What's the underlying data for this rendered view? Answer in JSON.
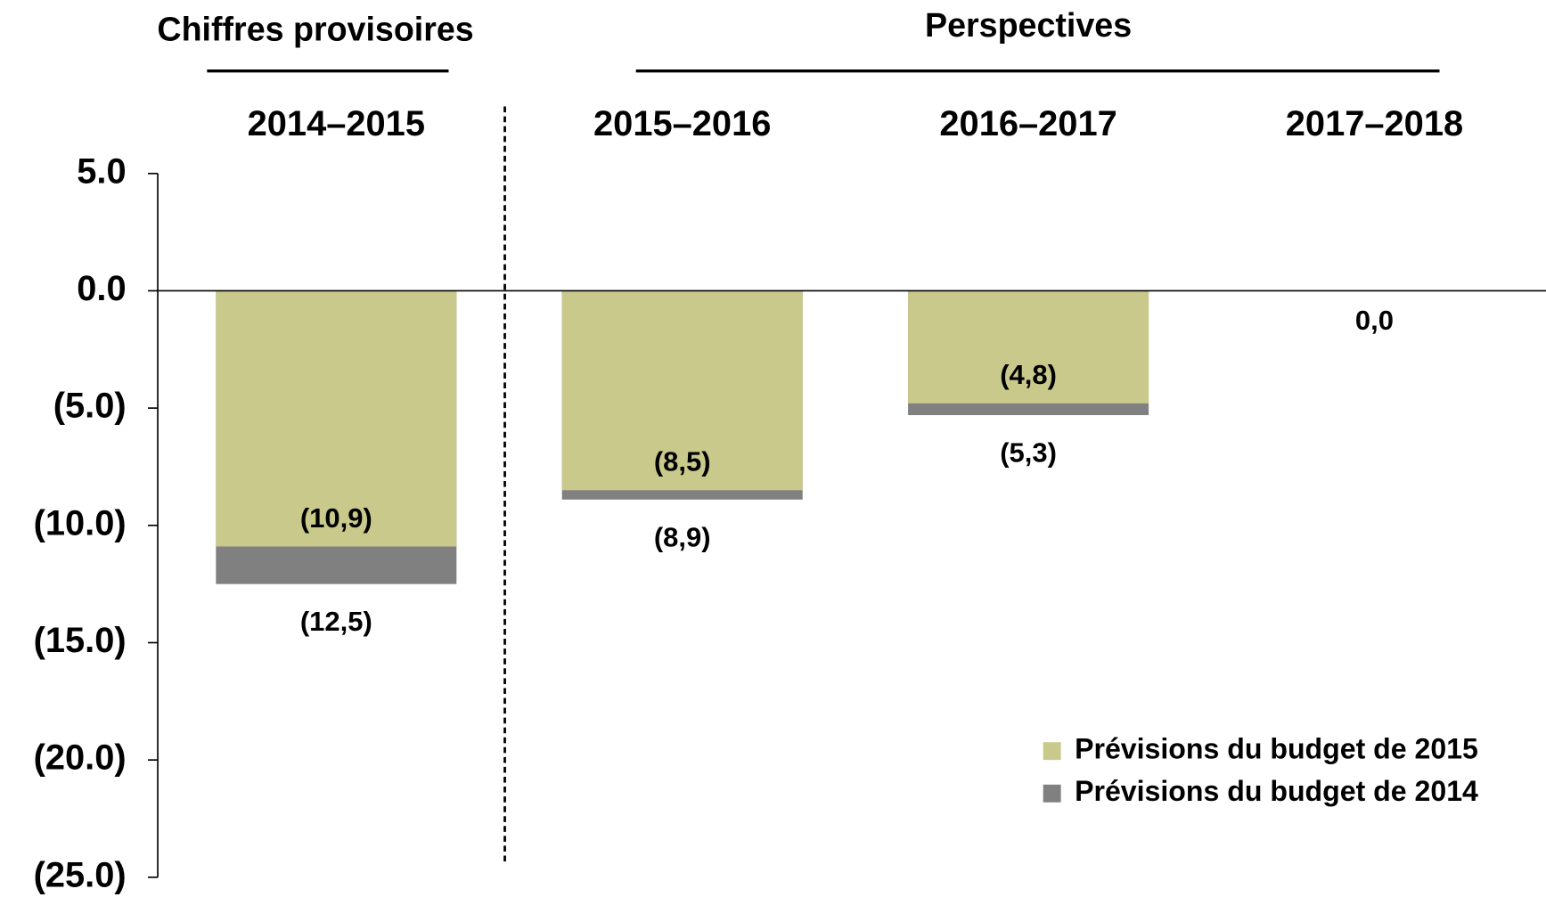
{
  "chart_data": {
    "type": "bar",
    "headers": [
      "Chiffres provisoires",
      "Perspectives"
    ],
    "categories": [
      "2014–2015",
      "2015–2016",
      "2016–2017",
      "2017–2018"
    ],
    "series": [
      {
        "name": "Prévisions du budget de 2014",
        "color": "#808080",
        "values": [
          -12.5,
          -8.9,
          -5.3,
          null
        ],
        "value_labels": [
          "(12,5)",
          "(8,9)",
          "(5,3)",
          null
        ]
      },
      {
        "name": "Prévisions du budget de 2015",
        "color": "#c9c98b",
        "values": [
          -10.9,
          -8.5,
          -4.8,
          0.0
        ],
        "value_labels": [
          "(10,9)",
          "(8,5)",
          "(4,8)",
          "0,0"
        ]
      }
    ],
    "ylim": [
      -25,
      5
    ],
    "yticks": [
      {
        "value": 5,
        "label": "5.0"
      },
      {
        "value": 0,
        "label": "0.0"
      },
      {
        "value": -5,
        "label": "(5.0)"
      },
      {
        "value": -10,
        "label": "(10.0)"
      },
      {
        "value": -15,
        "label": "(15.0)"
      },
      {
        "value": -20,
        "label": "(20.0)"
      },
      {
        "value": -25,
        "label": "(25.0)"
      }
    ]
  }
}
